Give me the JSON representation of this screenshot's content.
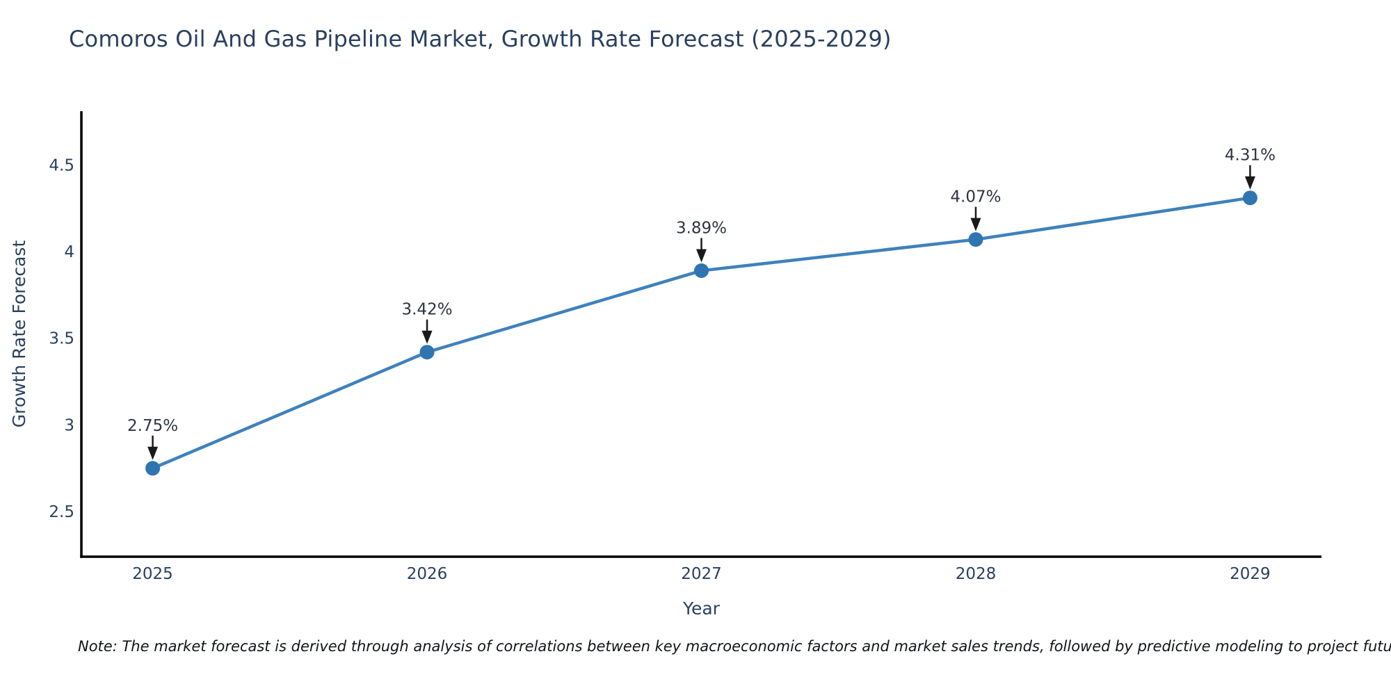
{
  "page": {
    "note": "Note: The market forecast is derived through analysis of correlations between key macroeconomic factors and market sales trends, followed by predictive modeling to project future sales"
  },
  "chart_data": {
    "type": "line",
    "title": "Comoros Oil And Gas Pipeline Market, Growth Rate Forecast (2025-2029)",
    "xlabel": "Year",
    "ylabel": "Growth Rate Forecast",
    "x": [
      2025,
      2026,
      2027,
      2028,
      2029
    ],
    "values": [
      2.75,
      3.42,
      3.89,
      4.07,
      4.31
    ],
    "point_labels": [
      "2.75%",
      "3.42%",
      "3.89%",
      "4.07%",
      "4.31%"
    ],
    "xticks": [
      2025,
      2026,
      2027,
      2028,
      2029
    ],
    "yticks": [
      2.5,
      3,
      3.5,
      4,
      4.5
    ],
    "xlim": [
      2024.74,
      2029.26
    ],
    "ylim": [
      2.24,
      4.81
    ],
    "grid": false,
    "legend": "none",
    "annotations_have_arrows": true,
    "colors": {
      "line": "#3f81bb",
      "marker": "#2e75b2",
      "axis": "#000000",
      "axis_text": "#2a3f5f",
      "annotation_text": "#2d3440",
      "arrow": "#1a1a1a",
      "background": "#ffffff"
    }
  }
}
